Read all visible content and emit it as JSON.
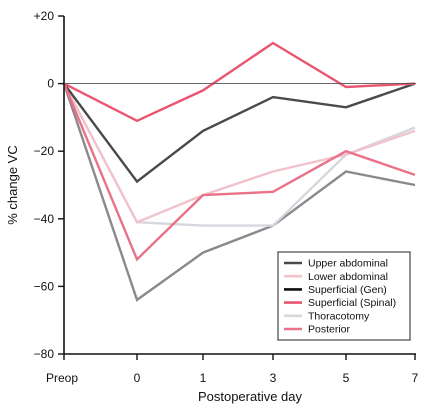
{
  "chart_data": {
    "type": "line",
    "title": "",
    "xlabel": "Postoperative day",
    "ylabel": "% change VC",
    "categories": [
      "Preop",
      "0",
      "1",
      "3",
      "5",
      "7"
    ],
    "y_ticks": [
      "+20",
      "0",
      "−20",
      "−40",
      "−60",
      "−80"
    ],
    "ylim": [
      -80,
      20
    ],
    "grid": false,
    "zero_line": true,
    "legend_position": "bottom-right",
    "series": [
      {
        "name": "Upper abdominal",
        "color": "#4a4a4e",
        "values": [
          0,
          -29,
          -14,
          -4,
          -7,
          0
        ]
      },
      {
        "name": "Lower abdominal",
        "color": "#f2c2cc",
        "values": [
          0,
          -41,
          -33,
          -26,
          -21,
          -14
        ]
      },
      {
        "name": "Superficial (Gen)",
        "color": "#111111",
        "values": [
          0,
          -40,
          -41,
          -41,
          -25,
          -13
        ]
      },
      {
        "name": "Superficial (Spinal)",
        "color": "#e8566f",
        "values": [
          0,
          -11,
          -2,
          12,
          -1,
          0
        ]
      },
      {
        "name": "Thoracotomy",
        "color": "#d6d8de",
        "values": [
          0,
          -41,
          -42,
          -42,
          -21,
          -13
        ]
      },
      {
        "name": "Posterior",
        "color": "#ea7288",
        "values": [
          0,
          -52,
          -33,
          -32,
          -20,
          -27
        ]
      }
    ],
    "extra_lines": [
      {
        "color": "#8a8a8e",
        "values": [
          0,
          -64,
          -50,
          -42,
          -26,
          -30
        ]
      }
    ]
  }
}
